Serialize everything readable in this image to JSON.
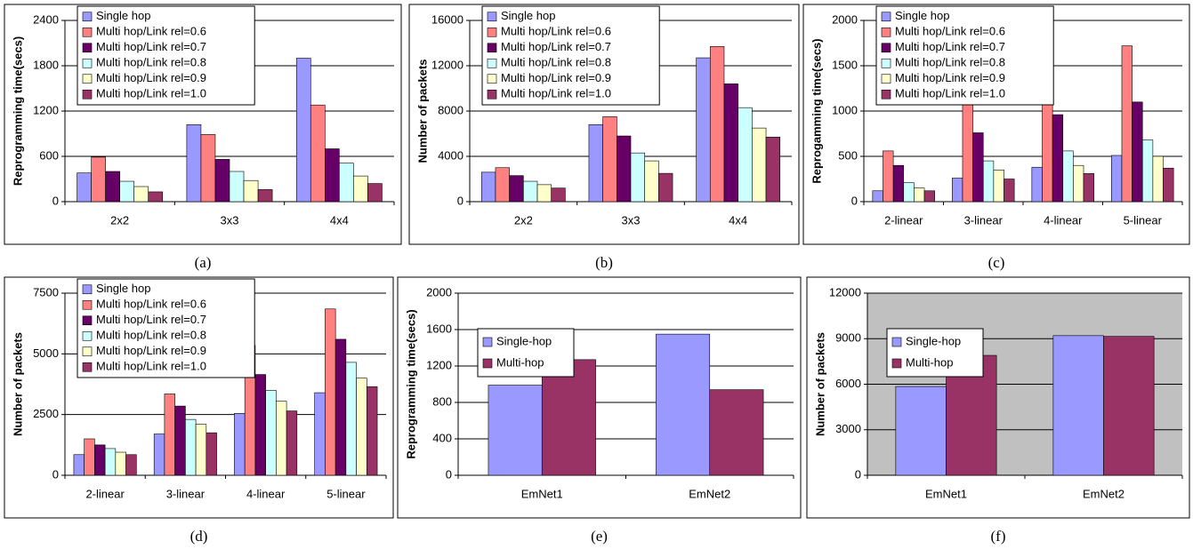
{
  "chart_data": [
    {
      "type": "bar",
      "caption": "(a)",
      "y_label": "Reprogramming time(secs)",
      "categories": [
        "2x2",
        "3x3",
        "4x4"
      ],
      "ylim": [
        0,
        2400
      ],
      "yticks": [
        0,
        600,
        1200,
        1800,
        2400
      ],
      "grid": true,
      "legend": "top-left",
      "plot_background": "#ffffff",
      "series": [
        {
          "name": "Single hop",
          "color": "#9999ff",
          "values": [
            380,
            1020,
            1900
          ]
        },
        {
          "name": "Multi hop/Link rel=0.6",
          "color": "#ff8080",
          "values": [
            590,
            890,
            1280
          ]
        },
        {
          "name": "Multi hop/Link rel=0.7",
          "color": "#660066",
          "values": [
            400,
            560,
            700
          ]
        },
        {
          "name": "Multi hop/Link rel=0.8",
          "color": "#ccffff",
          "values": [
            270,
            400,
            510
          ]
        },
        {
          "name": "Multi hop/Link rel=0.9",
          "color": "#ffffcc",
          "values": [
            200,
            280,
            340
          ]
        },
        {
          "name": "Multi hop/Link rel=1.0",
          "color": "#993366",
          "values": [
            130,
            160,
            240
          ]
        }
      ]
    },
    {
      "type": "bar",
      "caption": "(b)",
      "y_label": "Number of packets",
      "categories": [
        "2x2",
        "3x3",
        "4x4"
      ],
      "ylim": [
        0,
        16000
      ],
      "yticks": [
        0,
        4000,
        8000,
        12000,
        16000
      ],
      "grid": true,
      "legend": "top-left",
      "plot_background": "#ffffff",
      "series": [
        {
          "name": "Single hop",
          "color": "#9999ff",
          "values": [
            2600,
            6800,
            12700
          ]
        },
        {
          "name": "Multi hop/Link rel=0.6",
          "color": "#ff8080",
          "values": [
            3000,
            7500,
            13700
          ]
        },
        {
          "name": "Multi hop/Link rel=0.7",
          "color": "#660066",
          "values": [
            2300,
            5800,
            10400
          ]
        },
        {
          "name": "Multi hop/Link rel=0.8",
          "color": "#ccffff",
          "values": [
            1800,
            4300,
            8300
          ]
        },
        {
          "name": "Multi hop/Link rel=0.9",
          "color": "#ffffcc",
          "values": [
            1500,
            3600,
            6500
          ]
        },
        {
          "name": "Multi hop/Link rel=1.0",
          "color": "#993366",
          "values": [
            1200,
            2500,
            5700
          ]
        }
      ]
    },
    {
      "type": "bar",
      "caption": "(c)",
      "y_label": "Reprogamming time(secs)",
      "categories": [
        "2-linear",
        "3-linear",
        "4-linear",
        "5-linear"
      ],
      "ylim": [
        0,
        2000
      ],
      "yticks": [
        0,
        500,
        1000,
        1500,
        2000
      ],
      "grid": true,
      "legend": "top-left",
      "plot_background": "#ffffff",
      "series": [
        {
          "name": "Single hop",
          "color": "#9999ff",
          "values": [
            120,
            260,
            380,
            510
          ]
        },
        {
          "name": "Multi hop/Link rel=0.6",
          "color": "#ff8080",
          "values": [
            560,
            1080,
            1560,
            1720
          ]
        },
        {
          "name": "Multi hop/Link rel=0.7",
          "color": "#660066",
          "values": [
            400,
            760,
            960,
            1100
          ]
        },
        {
          "name": "Multi hop/Link rel=0.8",
          "color": "#ccffff",
          "values": [
            210,
            450,
            560,
            680
          ]
        },
        {
          "name": "Multi hop/Link rel=0.9",
          "color": "#ffffcc",
          "values": [
            150,
            350,
            400,
            500
          ]
        },
        {
          "name": "Multi hop/Link rel=1.0",
          "color": "#993366",
          "values": [
            120,
            250,
            310,
            370
          ]
        }
      ]
    },
    {
      "type": "bar",
      "caption": "(d)",
      "y_label": "Number of packets",
      "categories": [
        "2-linear",
        "3-linear",
        "4-linear",
        "5-linear"
      ],
      "ylim": [
        0,
        7500
      ],
      "yticks": [
        0,
        2500,
        5000,
        7500
      ],
      "grid": true,
      "legend": "top-left",
      "plot_background": "#ffffff",
      "series": [
        {
          "name": "Single hop",
          "color": "#9999ff",
          "values": [
            850,
            1700,
            2550,
            3400
          ]
        },
        {
          "name": "Multi hop/Link rel=0.6",
          "color": "#ff8080",
          "values": [
            1500,
            3350,
            5350,
            6850
          ]
        },
        {
          "name": "Multi hop/Link rel=0.7",
          "color": "#660066",
          "values": [
            1250,
            2850,
            4150,
            5600
          ]
        },
        {
          "name": "Multi hop/Link rel=0.8",
          "color": "#ccffff",
          "values": [
            1100,
            2300,
            3500,
            4650
          ]
        },
        {
          "name": "Multi hop/Link rel=0.9",
          "color": "#ffffcc",
          "values": [
            950,
            2100,
            3050,
            4000
          ]
        },
        {
          "name": "Multi hop/Link rel=1.0",
          "color": "#993366",
          "values": [
            850,
            1750,
            2650,
            3650
          ]
        }
      ]
    },
    {
      "type": "bar",
      "caption": "(e)",
      "y_label": "Reprogramming time(secs)",
      "categories": [
        "EmNet1",
        "EmNet2"
      ],
      "ylim": [
        0,
        2000
      ],
      "yticks": [
        0,
        400,
        800,
        1200,
        1600,
        2000
      ],
      "grid": true,
      "legend": "upper-left",
      "plot_background": "#ffffff",
      "series": [
        {
          "name": "Single-hop",
          "color": "#9999ff",
          "values": [
            990,
            1550
          ]
        },
        {
          "name": "Multi-hop",
          "color": "#993366",
          "values": [
            1270,
            940
          ]
        }
      ]
    },
    {
      "type": "bar",
      "caption": "(f)",
      "y_label": "Number of packets",
      "categories": [
        "EmNet1",
        "EmNet2"
      ],
      "ylim": [
        0,
        12000
      ],
      "yticks": [
        0,
        3000,
        6000,
        9000,
        12000
      ],
      "grid": true,
      "legend": "upper-left",
      "plot_background": "#c0c0c0",
      "series": [
        {
          "name": "Single-hop",
          "color": "#9999ff",
          "values": [
            5850,
            9200
          ]
        },
        {
          "name": "Multi-hop",
          "color": "#993366",
          "values": [
            7900,
            9150
          ]
        }
      ]
    }
  ]
}
